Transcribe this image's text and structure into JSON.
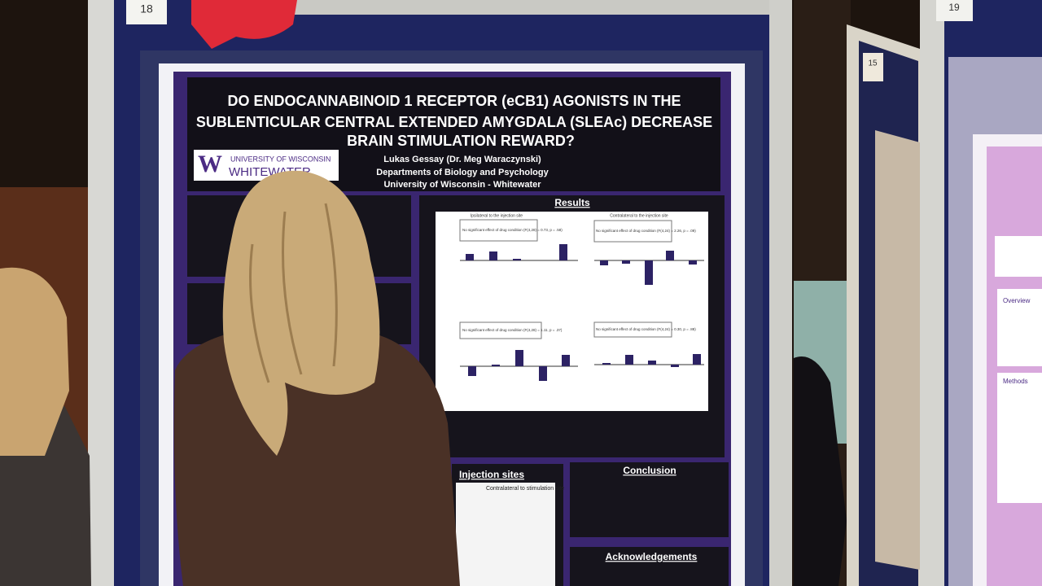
{
  "board_numbers": [
    "18",
    "15",
    "19"
  ],
  "poster": {
    "title_lines": [
      "DO ENDOCANNABINOID 1 RECEPTOR (eCB1) AGONISTS IN THE",
      "SUBLENTICULAR CENTRAL EXTENDED AMYGDALA (SLEAc) DECREASE",
      "BRAIN STIMULATION REWARD?"
    ],
    "logo": {
      "letter": "W",
      "line1": "UNIVERSITY OF WISCONSIN",
      "line2": "WHITEWATER"
    },
    "authors": "Lukas Gessay (Dr. Meg Waraczynski)",
    "department": "Departments of Biology and Psychology",
    "institution": "University of Wisconsin - Whitewater",
    "sections": {
      "results": "Results",
      "injection_sites": "Injection sites",
      "conclusion": "Conclusion",
      "acknowledgements": "Acknowledgements"
    },
    "results_captions": [
      "Ipsilateral to the injection site",
      "Contralateral to the injection site"
    ],
    "panel_stats": [
      "No significant effect of drug condition (F(4,28) = 0.73, p = .58)",
      "No significant effect of drug condition (F(4,24) = 2.26, p = .09)",
      "No significant effect of drug condition (F(4,28) = 1.11, p = .37)",
      "No significant effect of drug condition (F(4,24) = 0.30, p = .88)"
    ],
    "injection_labels": [
      "Contralateral to stimulation site"
    ]
  },
  "right_poster": {
    "sections": [
      "Overview",
      "Methods"
    ]
  }
}
